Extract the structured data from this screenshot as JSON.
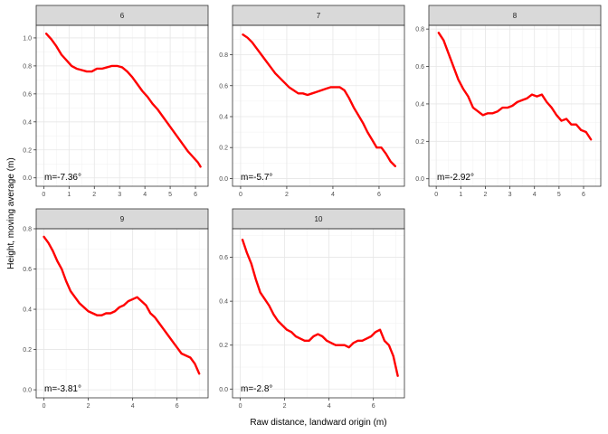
{
  "chart_data": {
    "type": "line",
    "xlabel": "Raw distance, landward origin (m)",
    "ylabel": "Height, moving average (m)",
    "line_color": "#ff0000",
    "grid": true,
    "panels": [
      {
        "label": "6",
        "annotation": "m=-7.36°",
        "xlim": [
          -0.3,
          6.5
        ],
        "ylim": [
          -0.06,
          1.09
        ],
        "xticks": [
          0,
          1,
          2,
          3,
          4,
          5,
          6
        ],
        "yticks": [
          0.0,
          0.2,
          0.4,
          0.6,
          0.8,
          1.0
        ],
        "ytick_labels": [
          "0.0",
          "0.2",
          "0.4",
          "0.6",
          "0.8",
          "1.0"
        ],
        "x": [
          0.1,
          0.3,
          0.5,
          0.7,
          0.9,
          1.1,
          1.3,
          1.5,
          1.7,
          1.9,
          2.1,
          2.3,
          2.5,
          2.7,
          2.9,
          3.1,
          3.3,
          3.5,
          3.7,
          3.9,
          4.1,
          4.3,
          4.5,
          4.7,
          4.9,
          5.1,
          5.3,
          5.5,
          5.7,
          5.9,
          6.1,
          6.2
        ],
        "y": [
          1.03,
          0.99,
          0.94,
          0.88,
          0.84,
          0.8,
          0.78,
          0.77,
          0.76,
          0.76,
          0.78,
          0.78,
          0.79,
          0.8,
          0.8,
          0.79,
          0.76,
          0.72,
          0.67,
          0.62,
          0.58,
          0.53,
          0.49,
          0.44,
          0.39,
          0.34,
          0.29,
          0.24,
          0.19,
          0.15,
          0.11,
          0.08
        ]
      },
      {
        "label": "7",
        "annotation": "m=-5.7°",
        "xlim": [
          -0.35,
          7.1
        ],
        "ylim": [
          -0.05,
          0.99
        ],
        "xticks": [
          0,
          2,
          4,
          6
        ],
        "yticks": [
          0.0,
          0.2,
          0.4,
          0.6,
          0.8
        ],
        "ytick_labels": [
          "0.0",
          "0.2",
          "0.4",
          "0.6",
          "0.8"
        ],
        "x": [
          0.1,
          0.3,
          0.5,
          0.7,
          0.9,
          1.1,
          1.3,
          1.5,
          1.7,
          1.9,
          2.1,
          2.3,
          2.5,
          2.7,
          2.9,
          3.1,
          3.3,
          3.5,
          3.7,
          3.9,
          4.1,
          4.3,
          4.5,
          4.7,
          4.9,
          5.1,
          5.3,
          5.5,
          5.7,
          5.9,
          6.1,
          6.3,
          6.5,
          6.7
        ],
        "y": [
          0.93,
          0.91,
          0.88,
          0.84,
          0.8,
          0.76,
          0.72,
          0.68,
          0.65,
          0.62,
          0.59,
          0.57,
          0.55,
          0.55,
          0.54,
          0.55,
          0.56,
          0.57,
          0.58,
          0.59,
          0.59,
          0.59,
          0.57,
          0.52,
          0.46,
          0.41,
          0.36,
          0.3,
          0.25,
          0.2,
          0.2,
          0.16,
          0.11,
          0.08
        ]
      },
      {
        "label": "8",
        "annotation": "m=-2.92°",
        "xlim": [
          -0.3,
          6.7
        ],
        "ylim": [
          -0.04,
          0.82
        ],
        "xticks": [
          0,
          1,
          2,
          3,
          4,
          5,
          6
        ],
        "yticks": [
          0.0,
          0.2,
          0.4,
          0.6,
          0.8
        ],
        "ytick_labels": [
          "0.0",
          "0.2",
          "0.4",
          "0.6",
          "0.8"
        ],
        "x": [
          0.1,
          0.3,
          0.5,
          0.7,
          0.9,
          1.1,
          1.3,
          1.5,
          1.7,
          1.9,
          2.1,
          2.3,
          2.5,
          2.7,
          2.9,
          3.1,
          3.3,
          3.5,
          3.7,
          3.9,
          4.1,
          4.3,
          4.5,
          4.7,
          4.9,
          5.1,
          5.3,
          5.5,
          5.7,
          5.9,
          6.1,
          6.3
        ],
        "y": [
          0.78,
          0.74,
          0.67,
          0.6,
          0.53,
          0.48,
          0.44,
          0.38,
          0.36,
          0.34,
          0.35,
          0.35,
          0.36,
          0.38,
          0.38,
          0.39,
          0.41,
          0.42,
          0.43,
          0.45,
          0.44,
          0.45,
          0.41,
          0.38,
          0.34,
          0.31,
          0.32,
          0.29,
          0.29,
          0.26,
          0.25,
          0.21
        ]
      },
      {
        "label": "9",
        "annotation": "m=-3.81°",
        "xlim": [
          -0.35,
          7.4
        ],
        "ylim": [
          -0.04,
          0.8
        ],
        "xticks": [
          0,
          2,
          4,
          6
        ],
        "yticks": [
          0.0,
          0.2,
          0.4,
          0.6,
          0.8
        ],
        "ytick_labels": [
          "0.0",
          "0.2",
          "0.4",
          "0.6",
          "0.8"
        ],
        "x": [
          0.0,
          0.2,
          0.4,
          0.6,
          0.8,
          1.0,
          1.2,
          1.4,
          1.6,
          1.8,
          2.0,
          2.2,
          2.4,
          2.6,
          2.8,
          3.0,
          3.2,
          3.4,
          3.6,
          3.8,
          4.0,
          4.2,
          4.4,
          4.6,
          4.8,
          5.0,
          5.2,
          5.4,
          5.6,
          5.8,
          6.0,
          6.2,
          6.4,
          6.6,
          6.8,
          7.0
        ],
        "y": [
          0.76,
          0.73,
          0.69,
          0.64,
          0.6,
          0.54,
          0.49,
          0.46,
          0.43,
          0.41,
          0.39,
          0.38,
          0.37,
          0.37,
          0.38,
          0.38,
          0.39,
          0.41,
          0.42,
          0.44,
          0.45,
          0.46,
          0.44,
          0.42,
          0.38,
          0.36,
          0.33,
          0.3,
          0.27,
          0.24,
          0.21,
          0.18,
          0.17,
          0.16,
          0.13,
          0.08
        ]
      },
      {
        "label": "10",
        "annotation": "m=-2.8°",
        "xlim": [
          -0.35,
          7.4
        ],
        "ylim": [
          -0.04,
          0.73
        ],
        "xticks": [
          0,
          2,
          4,
          6
        ],
        "yticks": [
          0.0,
          0.2,
          0.4,
          0.6
        ],
        "ytick_labels": [
          "0.0",
          "0.2",
          "0.4",
          "0.6"
        ],
        "x": [
          0.1,
          0.3,
          0.5,
          0.7,
          0.9,
          1.1,
          1.3,
          1.5,
          1.7,
          1.9,
          2.1,
          2.3,
          2.5,
          2.7,
          2.9,
          3.1,
          3.3,
          3.5,
          3.7,
          3.9,
          4.1,
          4.3,
          4.5,
          4.7,
          4.9,
          5.1,
          5.3,
          5.5,
          5.7,
          5.9,
          6.1,
          6.3,
          6.5,
          6.7,
          6.9,
          7.1
        ],
        "y": [
          0.68,
          0.62,
          0.57,
          0.5,
          0.44,
          0.41,
          0.38,
          0.34,
          0.31,
          0.29,
          0.27,
          0.26,
          0.24,
          0.23,
          0.22,
          0.22,
          0.24,
          0.25,
          0.24,
          0.22,
          0.21,
          0.2,
          0.2,
          0.2,
          0.19,
          0.21,
          0.22,
          0.22,
          0.23,
          0.24,
          0.26,
          0.27,
          0.22,
          0.2,
          0.15,
          0.06
        ]
      }
    ]
  }
}
